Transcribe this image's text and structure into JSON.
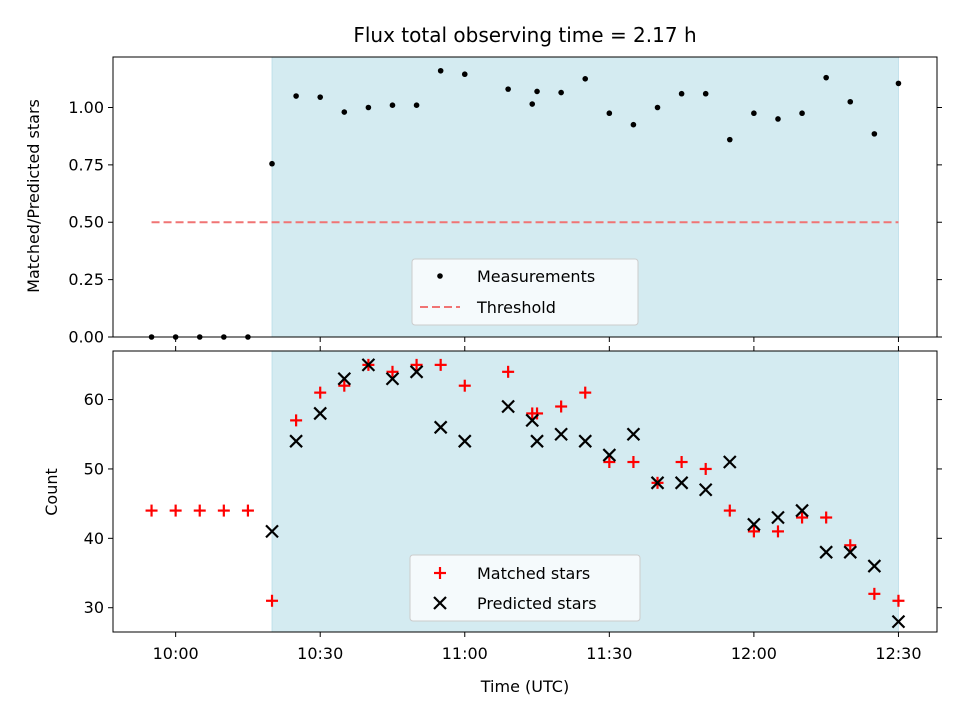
{
  "colors": {
    "shade": "#d4ebf1",
    "measurement": "#000000",
    "threshold": "#f07474",
    "matched": "#ff0000",
    "predicted": "#000000"
  },
  "chart_data": [
    {
      "type": "scatter",
      "title": "Flux total observing time = 2.17 h",
      "xlabel": "",
      "ylabel": "Matched/Predicted stars",
      "x_unit": "time (UTC, HH:MM)",
      "xlim": [
        "09:47",
        "12:38"
      ],
      "ylim": [
        0,
        1.22
      ],
      "yticks": [
        "0.00",
        "0.25",
        "0.50",
        "0.75",
        "1.00"
      ],
      "shaded_region": [
        "10:20",
        "12:30"
      ],
      "legend": "lower-center",
      "grid": false,
      "series": [
        {
          "name": "Measurements",
          "marker": "dot",
          "x": [
            "09:55",
            "10:00",
            "10:05",
            "10:10",
            "10:15",
            "10:20",
            "10:25",
            "10:30",
            "10:35",
            "10:40",
            "10:45",
            "10:50",
            "10:55",
            "11:00",
            "11:09",
            "11:14",
            "11:15",
            "11:20",
            "11:25",
            "11:30",
            "11:35",
            "11:40",
            "11:45",
            "11:50",
            "11:55",
            "12:00",
            "12:05",
            "12:10",
            "12:15",
            "12:20",
            "12:25",
            "12:30"
          ],
          "y": [
            0,
            0,
            0,
            0,
            0,
            0.755,
            1.05,
            1.045,
            0.98,
            1.0,
            1.01,
            1.01,
            1.16,
            1.145,
            1.08,
            1.015,
            1.07,
            1.065,
            1.125,
            0.975,
            0.925,
            1.0,
            1.06,
            1.06,
            0.86,
            0.975,
            0.95,
            0.975,
            1.13,
            1.025,
            0.885,
            1.105
          ]
        },
        {
          "name": "Threshold",
          "style": "dashed",
          "x": [
            "09:55",
            "12:30"
          ],
          "y": [
            0.5,
            0.5
          ]
        }
      ]
    },
    {
      "type": "scatter",
      "title": "",
      "xlabel": "Time (UTC)",
      "ylabel": "Count",
      "xlim": [
        "09:47",
        "12:38"
      ],
      "ylim": [
        26.5,
        67
      ],
      "yticks": [
        "30",
        "40",
        "50",
        "60"
      ],
      "xticks": [
        "10:00",
        "10:30",
        "11:00",
        "11:30",
        "12:00",
        "12:30"
      ],
      "shaded_region": [
        "10:20",
        "12:30"
      ],
      "legend": "lower-center",
      "grid": false,
      "series": [
        {
          "name": "Matched stars",
          "marker": "plus",
          "x": [
            "09:55",
            "10:00",
            "10:05",
            "10:10",
            "10:15",
            "10:20",
            "10:25",
            "10:30",
            "10:35",
            "10:40",
            "10:45",
            "10:50",
            "10:55",
            "11:00",
            "11:09",
            "11:14",
            "11:15",
            "11:20",
            "11:25",
            "11:30",
            "11:35",
            "11:40",
            "11:45",
            "11:50",
            "11:55",
            "12:00",
            "12:05",
            "12:10",
            "12:15",
            "12:20",
            "12:25",
            "12:30"
          ],
          "y": [
            44,
            44,
            44,
            44,
            44,
            31,
            57,
            61,
            62,
            65,
            64,
            65,
            65,
            62,
            64,
            58,
            58,
            59,
            61,
            51,
            51,
            48,
            51,
            50,
            44,
            41,
            41,
            43,
            43,
            39,
            32,
            31
          ]
        },
        {
          "name": "Predicted stars",
          "marker": "x",
          "x": [
            "10:20",
            "10:25",
            "10:30",
            "10:35",
            "10:40",
            "10:45",
            "10:50",
            "10:55",
            "11:00",
            "11:09",
            "11:14",
            "11:15",
            "11:25",
            "11:20",
            "11:30",
            "11:35",
            "11:40",
            "11:45",
            "11:50",
            "11:55",
            "12:00",
            "12:05",
            "12:10",
            "12:15",
            "12:20",
            "12:25",
            "12:30"
          ],
          "y": [
            41,
            54,
            58,
            63,
            65,
            63,
            64,
            56,
            54,
            59,
            57,
            54,
            54,
            55,
            52,
            55,
            48,
            48,
            47,
            51,
            42,
            43,
            44,
            38,
            38,
            36,
            28
          ]
        }
      ]
    }
  ]
}
